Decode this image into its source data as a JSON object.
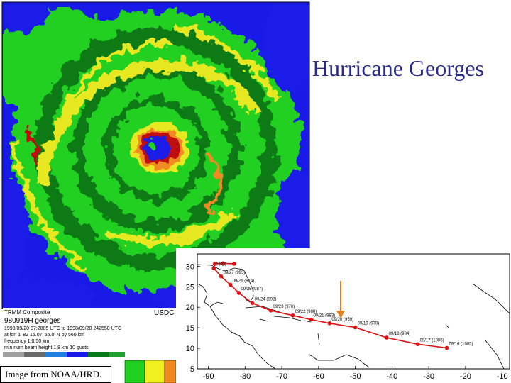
{
  "slide": {
    "title": "Hurricane Georges",
    "caption": "Image from NOAA/HRD."
  },
  "radar": {
    "usdc_label": "USDC",
    "meta": {
      "line1": "TRMM Composite",
      "line2": "980919H  georges",
      "line3": "1998/09/20 07:2005 UTC to 1998/09/20 242558 UTC",
      "line4": "at lon 1' 82  15.07' 55.0' N  by 560 km",
      "line5": "frequency 1.0    50 km",
      "line6": "min num beam height 1.8 km  10   gusts"
    },
    "colors": {
      "background": "#1a1ae8",
      "light_green": "#20d020",
      "dark_green": "#0a7a18",
      "yellow": "#e8e820",
      "orange": "#f08a20",
      "red": "#c01010"
    }
  },
  "chart_data": {
    "type": "scatter",
    "title": "",
    "xlabel": "",
    "ylabel": "",
    "xlim": [
      -93,
      -8
    ],
    "ylim": [
      5,
      33
    ],
    "x_ticks": [
      "-90",
      "-80",
      "-70",
      "-60",
      "-50",
      "-40",
      "-30",
      "-20",
      "-10"
    ],
    "y_ticks": [
      "5",
      "10",
      "15",
      "20",
      "25",
      "30"
    ],
    "track_color": "#dd1111",
    "arrow_color": "#e08020",
    "grid": false,
    "series": [
      {
        "points": [
          {
            "x": -25.1,
            "y": 10.1,
            "label": "09/16 (1005)"
          },
          {
            "x": -33.0,
            "y": 11.0,
            "label": "09/17 (1006)"
          },
          {
            "x": -41.5,
            "y": 12.6,
            "label": "09/18 (984)"
          },
          {
            "x": -50.0,
            "y": 15.1,
            "label": "09/19 (970)"
          },
          {
            "x": -57.0,
            "y": 16.1,
            "label": "09/20 (959)"
          },
          {
            "x": -62.0,
            "y": 17.0,
            "label": "09/21 (983)"
          },
          {
            "x": -67.0,
            "y": 18.0,
            "label": "09/22 (980)"
          },
          {
            "x": -73.0,
            "y": 19.2,
            "label": "09/23 (970)"
          },
          {
            "x": -78.0,
            "y": 21.0,
            "label": "09/24 (992)"
          },
          {
            "x": -81.7,
            "y": 23.5,
            "label": "09/25 (987)"
          },
          {
            "x": -84.0,
            "y": 25.5,
            "label": "09/26 (974)"
          },
          {
            "x": -86.5,
            "y": 27.5,
            "label": "09/27 (995)"
          },
          {
            "x": -88.5,
            "y": 29.5,
            "label": "09/28"
          },
          {
            "x": -88.2,
            "y": 30.6,
            "label": ""
          },
          {
            "x": -86.0,
            "y": 30.7,
            "label": ""
          },
          {
            "x": -83.0,
            "y": 30.6,
            "label": ""
          }
        ]
      }
    ]
  }
}
